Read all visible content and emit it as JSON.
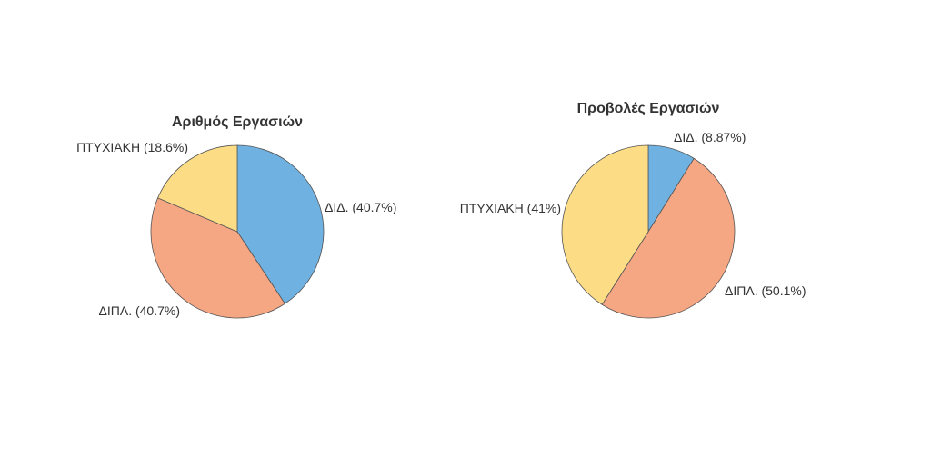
{
  "chart_data": [
    {
      "type": "pie",
      "title": "Αριθμός Εργασιών",
      "start": "top",
      "direction": "clockwise",
      "slices": [
        {
          "label": "ΔΙΔ.",
          "value": 40.7,
          "display": "ΔΙΔ. (40.7%)",
          "color": "#6FB2E2"
        },
        {
          "label": "ΔΙΠΛ.",
          "value": 40.7,
          "display": "ΔΙΠΛ. (40.7%)",
          "color": "#F5A683"
        },
        {
          "label": "ΠΤΥΧΙΑΚΗ",
          "value": 18.6,
          "display": "ΠΤΥΧΙΑΚΗ (18.6%)",
          "color": "#FDDC86"
        }
      ]
    },
    {
      "type": "pie",
      "title": "Προβολές Εργασιών",
      "start": "top",
      "direction": "clockwise",
      "slices": [
        {
          "label": "ΔΙΔ.",
          "value": 8.87,
          "display": "ΔΙΔ. (8.87%)",
          "color": "#6FB2E2"
        },
        {
          "label": "ΔΙΠΛ.",
          "value": 50.1,
          "display": "ΔΙΠΛ. (50.1%)",
          "color": "#F5A683"
        },
        {
          "label": "ΠΤΥΧΙΑΚΗ",
          "value": 41,
          "display": "ΠΤΥΧΙΑΚΗ (41%)",
          "color": "#FDDC86"
        }
      ]
    }
  ]
}
